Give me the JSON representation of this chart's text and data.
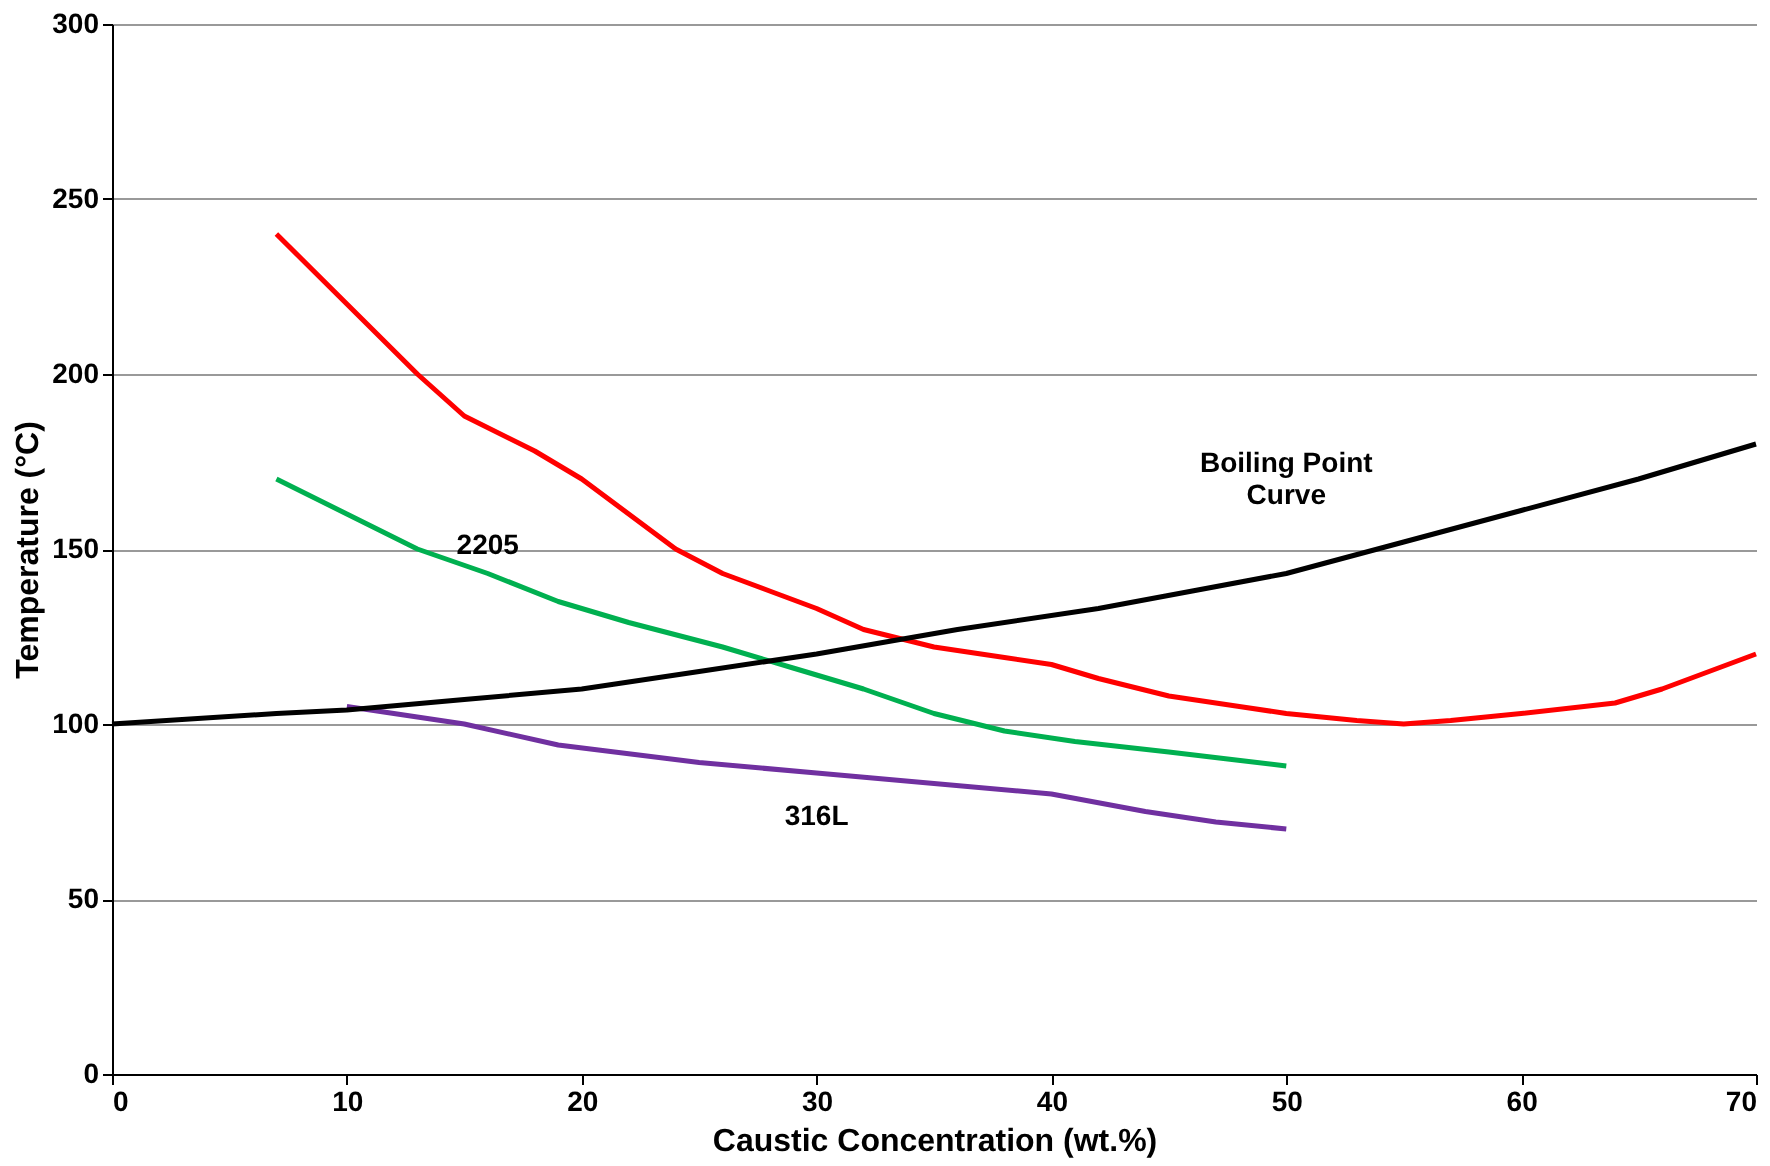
{
  "chart_data": {
    "type": "line",
    "xlabel": "Caustic Concentration (wt.%)",
    "ylabel": "Temperature (°C)",
    "xlim": [
      0,
      70
    ],
    "xticks": [
      0,
      10,
      20,
      30,
      40,
      50,
      60,
      70
    ],
    "ylim": [
      0,
      300
    ],
    "yticks": [
      0,
      50,
      100,
      150,
      200,
      250,
      300
    ],
    "grid": "y",
    "series": [
      {
        "color": "#ff0000",
        "x": [
          7,
          10,
          13,
          15,
          18,
          20,
          22,
          24,
          26,
          28,
          30,
          32,
          35,
          38,
          40,
          42,
          45,
          48,
          50,
          53,
          55,
          57,
          60,
          64,
          66,
          70
        ],
        "values": [
          240,
          220,
          200,
          188,
          178,
          170,
          160,
          150,
          143,
          138,
          133,
          127,
          122,
          119,
          117,
          113,
          108,
          105,
          103,
          101,
          100,
          101,
          103,
          106,
          110,
          120
        ]
      },
      {
        "name": "2205",
        "color": "#00b050",
        "x": [
          7,
          10,
          13,
          16,
          19,
          22,
          26,
          29,
          32,
          35,
          38,
          41,
          45,
          50
        ],
        "values": [
          170,
          160,
          150,
          143,
          135,
          129,
          122,
          116,
          110,
          103,
          98,
          95,
          92,
          88
        ]
      },
      {
        "name": "316L",
        "color": "#7030a0",
        "x": [
          10,
          15,
          19,
          25,
          30,
          35,
          40,
          44,
          47,
          50
        ],
        "values": [
          105,
          100,
          94,
          89,
          86,
          83,
          80,
          75,
          72,
          70
        ]
      },
      {
        "name": "Boiling Point Curve",
        "color": "#000000",
        "x": [
          0,
          7,
          10,
          15,
          20,
          25,
          30,
          36,
          42,
          46,
          50,
          55,
          60,
          65,
          70
        ],
        "values": [
          100,
          103,
          104,
          107,
          110,
          115,
          120,
          127,
          133,
          138,
          143,
          152,
          161,
          170,
          180
        ]
      }
    ]
  }
}
